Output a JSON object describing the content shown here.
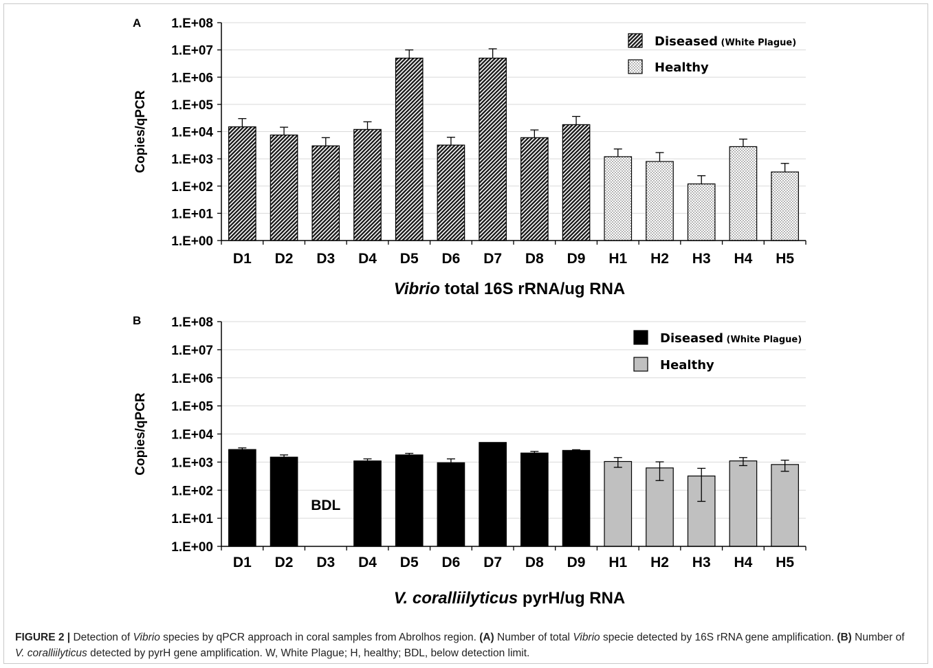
{
  "chart_data": [
    {
      "type": "bar",
      "panel_label": "A",
      "categories": [
        "D1",
        "D2",
        "D3",
        "D4",
        "D5",
        "D6",
        "D7",
        "D8",
        "D9",
        "H1",
        "H2",
        "H3",
        "H4",
        "H5"
      ],
      "ylabel": "Copies/qPCR",
      "ylim": [
        1,
        100000000
      ],
      "log_scale": true,
      "y_ticks": [
        "1.E+00",
        "1.E+01",
        "1.E+02",
        "1.E+03",
        "1.E+04",
        "1.E+05",
        "1.E+06",
        "1.E+07",
        "1.E+08"
      ],
      "grid": true,
      "legend_position": "top-right",
      "xlabel_italic": "Vibrio",
      "xlabel_rest": "total 16S rRNA/ug RNA",
      "series": [
        {
          "name": "Diseased",
          "name_suffix": "(White Plague)",
          "pattern": "hatched",
          "values": [
            15000,
            7500,
            3000,
            12000,
            5000000,
            3200,
            5000000,
            6000,
            18000,
            null,
            null,
            null,
            null,
            null
          ],
          "errors": [
            15000,
            7000,
            3000,
            11000,
            5000000,
            3000,
            6000000,
            5500,
            18000,
            null,
            null,
            null,
            null,
            null
          ]
        },
        {
          "name": "Healthy",
          "pattern": "dotted",
          "values": [
            null,
            null,
            null,
            null,
            null,
            null,
            null,
            null,
            null,
            1200,
            800,
            120,
            2800,
            330
          ],
          "errors": [
            null,
            null,
            null,
            null,
            null,
            null,
            null,
            null,
            null,
            1100,
            900,
            120,
            2500,
            350
          ]
        }
      ]
    },
    {
      "type": "bar",
      "panel_label": "B",
      "categories": [
        "D1",
        "D2",
        "D3",
        "D4",
        "D5",
        "D6",
        "D7",
        "D8",
        "D9",
        "H1",
        "H2",
        "H3",
        "H4",
        "H5"
      ],
      "ylabel": "Copies/qPCR",
      "ylim": [
        1,
        100000000
      ],
      "log_scale": true,
      "y_ticks": [
        "1.E+00",
        "1.E+01",
        "1.E+02",
        "1.E+03",
        "1.E+04",
        "1.E+05",
        "1.E+06",
        "1.E+07",
        "1.E+08"
      ],
      "grid": true,
      "legend_position": "top-right",
      "xlabel_italic": "V. coralliilyticus",
      "xlabel_rest": "pyrH/ug RNA",
      "annotations": [
        {
          "category": "D3",
          "text": "BDL"
        }
      ],
      "series": [
        {
          "name": "Diseased",
          "name_suffix": "(White Plague)",
          "color": "#000000",
          "values": [
            2800,
            1500,
            null,
            1100,
            1800,
            950,
            5000,
            2100,
            2600,
            null,
            null,
            null,
            null,
            null
          ],
          "errors": [
            400,
            300,
            null,
            200,
            250,
            350,
            0,
            300,
            150,
            null,
            null,
            null,
            null,
            null
          ]
        },
        {
          "name": "Healthy",
          "color": "#c0c0c0",
          "values": [
            null,
            null,
            null,
            null,
            null,
            null,
            null,
            null,
            null,
            1050,
            620,
            320,
            1100,
            820
          ],
          "errors": [
            null,
            null,
            null,
            null,
            null,
            null,
            null,
            null,
            null,
            400,
            400,
            280,
            350,
            350
          ]
        }
      ]
    }
  ],
  "caption": {
    "label": "FIGURE 2 |",
    "p1": " Detection of ",
    "i1": "Vibrio",
    "p2": " species by qPCR approach in coral samples from Abrolhos region. ",
    "b1": "(A)",
    "p3": " Number of total ",
    "i2": "Vibrio",
    "p4": " specie detected by 16S rRNA gene amplification. ",
    "b2": "(B)",
    "p5": " Number of ",
    "i3": "V. coralliilyticus",
    "p6": " detected by pyrH gene amplification. W, White Plague; H, healthy; BDL, below detection limit."
  },
  "colors": {
    "grid": "#d9d9d9",
    "axis": "#000000",
    "frame": "#c8c8c8"
  }
}
